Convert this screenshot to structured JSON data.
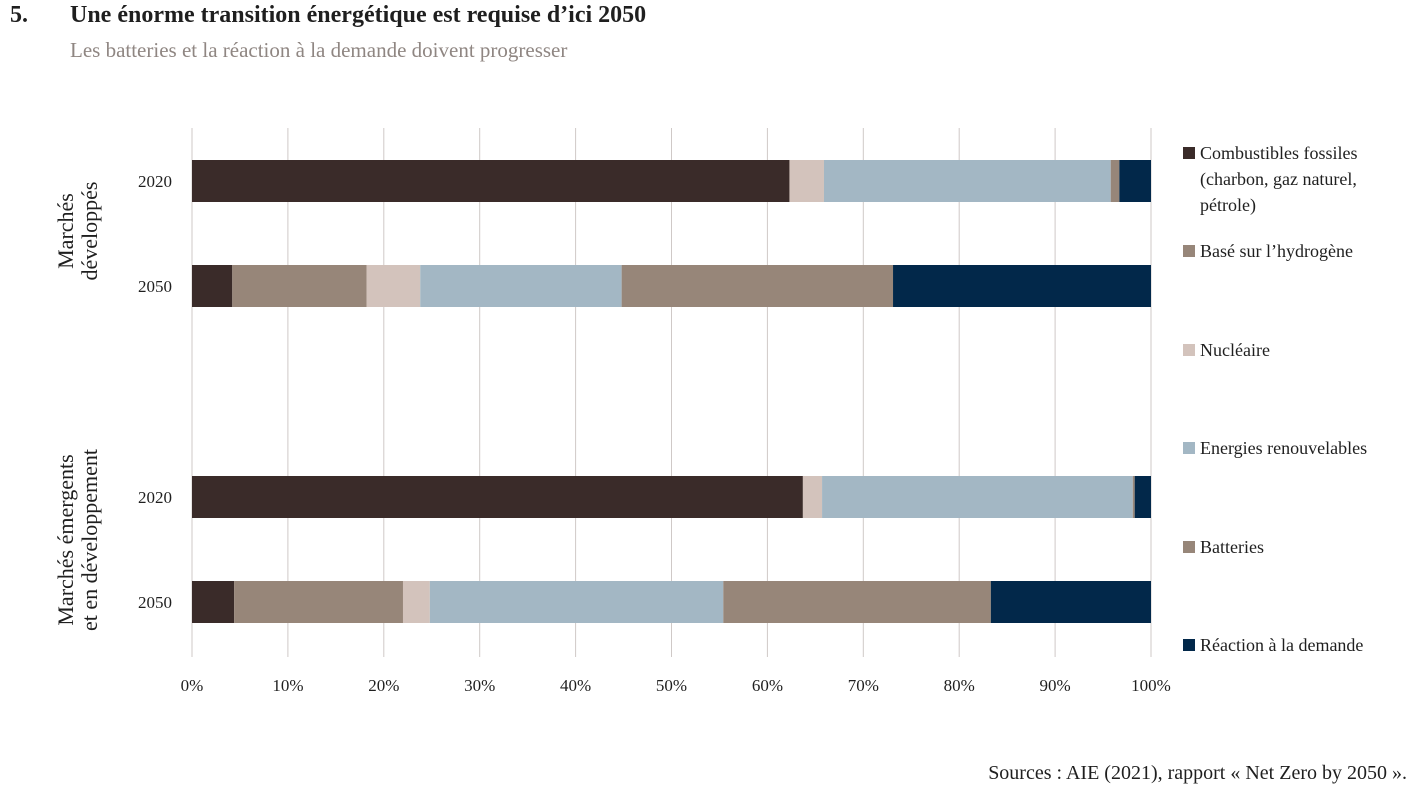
{
  "header": {
    "number": "5.",
    "title": "Une énorme transition énergétique est requise d’ici 2050",
    "subtitle": "Les batteries et la réaction à la demande doivent progresser"
  },
  "footer": {
    "source": "Sources : AIE (2021), rapport « Net Zero by 2050 »."
  },
  "colors": {
    "fossil": "#3a2b29",
    "hydrogen": "#978679",
    "nuclear": "#d3c3bc",
    "renewables": "#a3b7c4",
    "batteries": "#978679",
    "demand": "#02284a",
    "grid": "#cfc9c7"
  },
  "chart_data": {
    "type": "bar",
    "orientation": "horizontal",
    "stacked": true,
    "xlim": [
      0,
      100
    ],
    "x_ticks": [
      "0%",
      "10%",
      "20%",
      "30%",
      "40%",
      "50%",
      "60%",
      "70%",
      "80%",
      "90%",
      "100%"
    ],
    "grid": true,
    "legend_position": "right",
    "groups": [
      {
        "label_lines": [
          "Marchés",
          "développés"
        ],
        "categories": [
          "2020",
          "2050"
        ]
      },
      {
        "label_lines": [
          "Marchés émergents",
          "et en développement"
        ],
        "categories": [
          "2020",
          "2050"
        ]
      }
    ],
    "series": [
      {
        "name": "Combustibles fossiles (charbon, gaz naturel, pétrole)",
        "color_key": "fossil",
        "values": [
          62.3,
          4.2,
          63.7,
          4.4
        ]
      },
      {
        "name": "Basé sur l’hydrogène",
        "color_key": "hydrogen",
        "values": [
          0,
          14.0,
          0,
          17.6
        ]
      },
      {
        "name": "Nucléaire",
        "color_key": "nuclear",
        "values": [
          3.6,
          5.6,
          2.0,
          2.8
        ]
      },
      {
        "name": "Energies renouvelables",
        "color_key": "renewables",
        "values": [
          29.9,
          21.0,
          32.4,
          30.6
        ]
      },
      {
        "name": "Batteries",
        "color_key": "batteries",
        "values": [
          0.9,
          28.3,
          0.2,
          27.9
        ]
      },
      {
        "name": "Réaction à la demande",
        "color_key": "demand",
        "values": [
          3.3,
          26.9,
          1.7,
          16.7
        ]
      }
    ]
  }
}
